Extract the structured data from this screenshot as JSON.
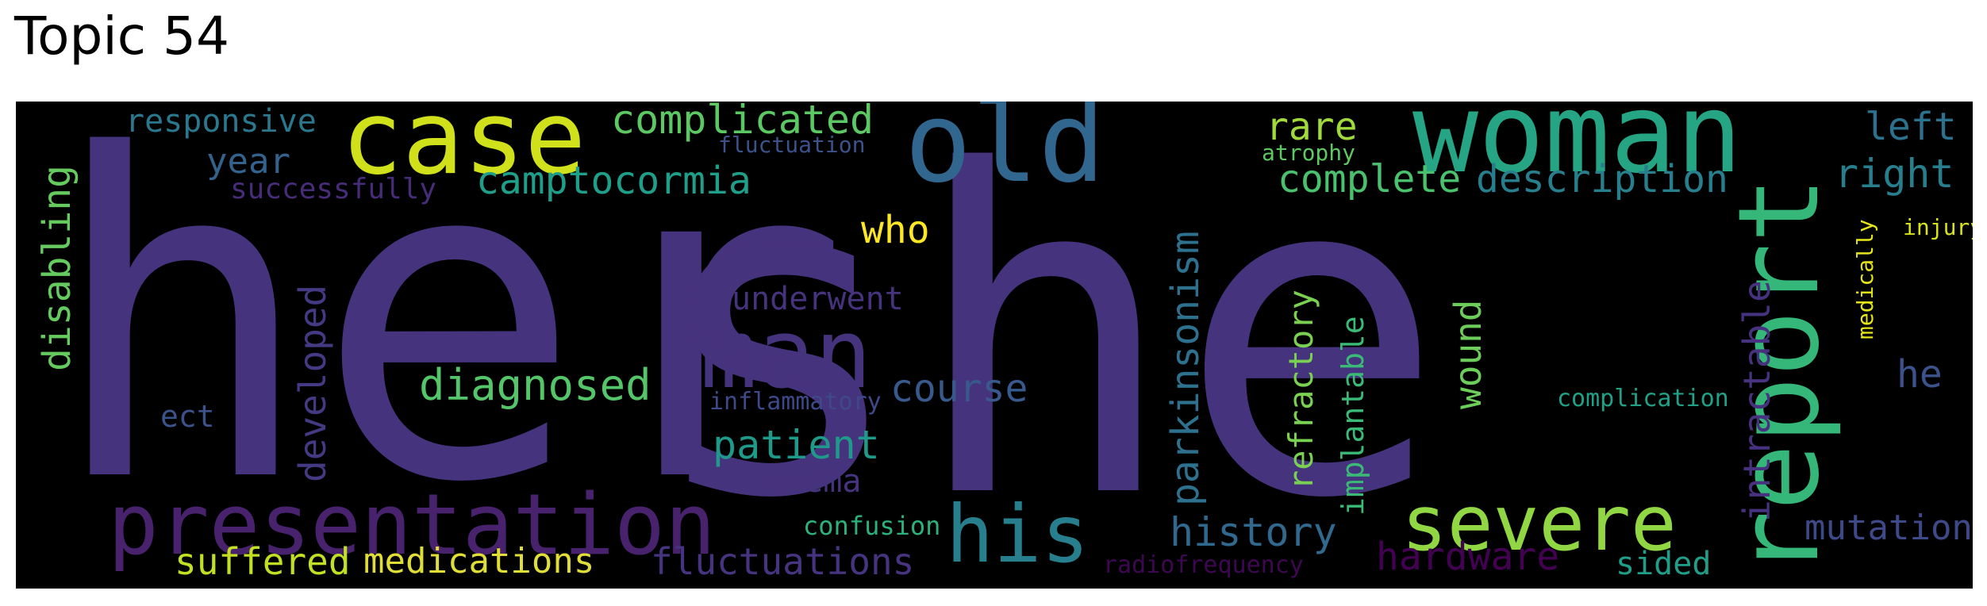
{
  "title": "Topic 54",
  "words": [
    {
      "text": "her",
      "color": "#46337e"
    },
    {
      "text": "she",
      "color": "#46337e"
    },
    {
      "text": "woman",
      "color": "#25a584"
    },
    {
      "text": "case",
      "color": "#d0e11c"
    },
    {
      "text": "old",
      "color": "#31668e"
    },
    {
      "text": "report",
      "color": "#35b779"
    },
    {
      "text": "man",
      "color": "#46337e"
    },
    {
      "text": "presentation",
      "color": "#48226d"
    },
    {
      "text": "his",
      "color": "#277f8e"
    },
    {
      "text": "severe",
      "color": "#90d743"
    },
    {
      "text": "complicated",
      "color": "#5cc863"
    },
    {
      "text": "responsive",
      "color": "#2a788e"
    },
    {
      "text": "year",
      "color": "#33638d"
    },
    {
      "text": "successfully",
      "color": "#472c7a"
    },
    {
      "text": "camptocormia",
      "color": "#1f9e89"
    },
    {
      "text": "fluctuation",
      "color": "#3b528b"
    },
    {
      "text": "who",
      "color": "#fde725"
    },
    {
      "text": "rare",
      "color": "#9fda3a"
    },
    {
      "text": "atrophy",
      "color": "#5ec962"
    },
    {
      "text": "complete",
      "color": "#4ac16d"
    },
    {
      "text": "description",
      "color": "#277f8e"
    },
    {
      "text": "left",
      "color": "#2c718e"
    },
    {
      "text": "right",
      "color": "#277f8e"
    },
    {
      "text": "injury",
      "color": "#d8e219"
    },
    {
      "text": "medically",
      "color": "#e5e419"
    },
    {
      "text": "disabling",
      "color": "#65cb5e"
    },
    {
      "text": "developed",
      "color": "#443a83"
    },
    {
      "text": "underwent",
      "color": "#46337e"
    },
    {
      "text": "diagnosed",
      "color": "#54c568"
    },
    {
      "text": "course",
      "color": "#38598c"
    },
    {
      "text": "inflammatory",
      "color": "#3e4989"
    },
    {
      "text": "ect",
      "color": "#3b528b"
    },
    {
      "text": "patient",
      "color": "#1f9a8a"
    },
    {
      "text": "edema",
      "color": "#46337e"
    },
    {
      "text": "parkinsonism",
      "color": "#2d718e"
    },
    {
      "text": "refractory",
      "color": "#7ad151"
    },
    {
      "text": "implantable",
      "color": "#3aba76"
    },
    {
      "text": "wound",
      "color": "#6ccd5a"
    },
    {
      "text": "intractable",
      "color": "#46327e"
    },
    {
      "text": "complication",
      "color": "#1fa187"
    },
    {
      "text": "he",
      "color": "#3b528b"
    },
    {
      "text": "history",
      "color": "#31688e"
    },
    {
      "text": "hardware",
      "color": "#440154"
    },
    {
      "text": "sided",
      "color": "#1f9e89"
    },
    {
      "text": "mutation",
      "color": "#3e4989"
    },
    {
      "text": "suffered",
      "color": "#c2df23"
    },
    {
      "text": "medications",
      "color": "#e1dd37"
    },
    {
      "text": "fluctuations",
      "color": "#463480"
    },
    {
      "text": "confusion",
      "color": "#2db27d"
    },
    {
      "text": "radiofrequency",
      "color": "#3e0751"
    }
  ]
}
